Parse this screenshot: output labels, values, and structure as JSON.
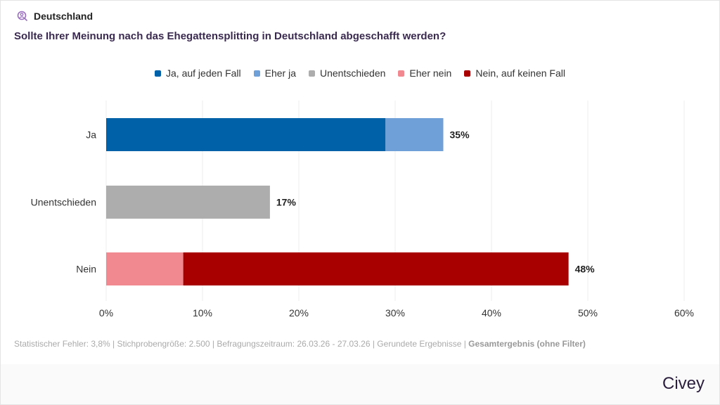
{
  "header": {
    "location": "Deutschland",
    "question": "Sollte Ihrer Meinung nach das Ehegattensplitting in Deutschland abgeschafft werden?"
  },
  "chart_data": {
    "type": "bar",
    "orientation": "horizontal",
    "stacked": true,
    "categories": [
      "Ja",
      "Unentschieden",
      "Nein"
    ],
    "series": [
      {
        "name": "Ja, auf jeden Fall",
        "color": "#0060a8",
        "values": [
          29,
          0,
          0
        ]
      },
      {
        "name": "Eher ja",
        "color": "#6fa0d8",
        "values": [
          6,
          0,
          0
        ]
      },
      {
        "name": "Unentschieden",
        "color": "#adadad",
        "values": [
          0,
          17,
          0
        ]
      },
      {
        "name": "Eher nein",
        "color": "#f08a90",
        "values": [
          0,
          0,
          8
        ]
      },
      {
        "name": "Nein, auf keinen Fall",
        "color": "#a80000",
        "values": [
          0,
          0,
          40
        ]
      }
    ],
    "totals": [
      "35%",
      "17%",
      "48%"
    ],
    "xlim": [
      0,
      60
    ],
    "ticks": [
      "0%",
      "10%",
      "20%",
      "30%",
      "40%",
      "50%",
      "60%"
    ],
    "grid": true,
    "legend": "top"
  },
  "footer": {
    "text": "Statistischer Fehler: 3,8% | Stichprobengröße: 2.500 | Befragungszeitraum: 26.03.26 - 27.03.26 | Gerundete Ergebnisse | ",
    "bold": "Gesamtergebnis (ohne Filter)"
  },
  "brand": "Civey"
}
